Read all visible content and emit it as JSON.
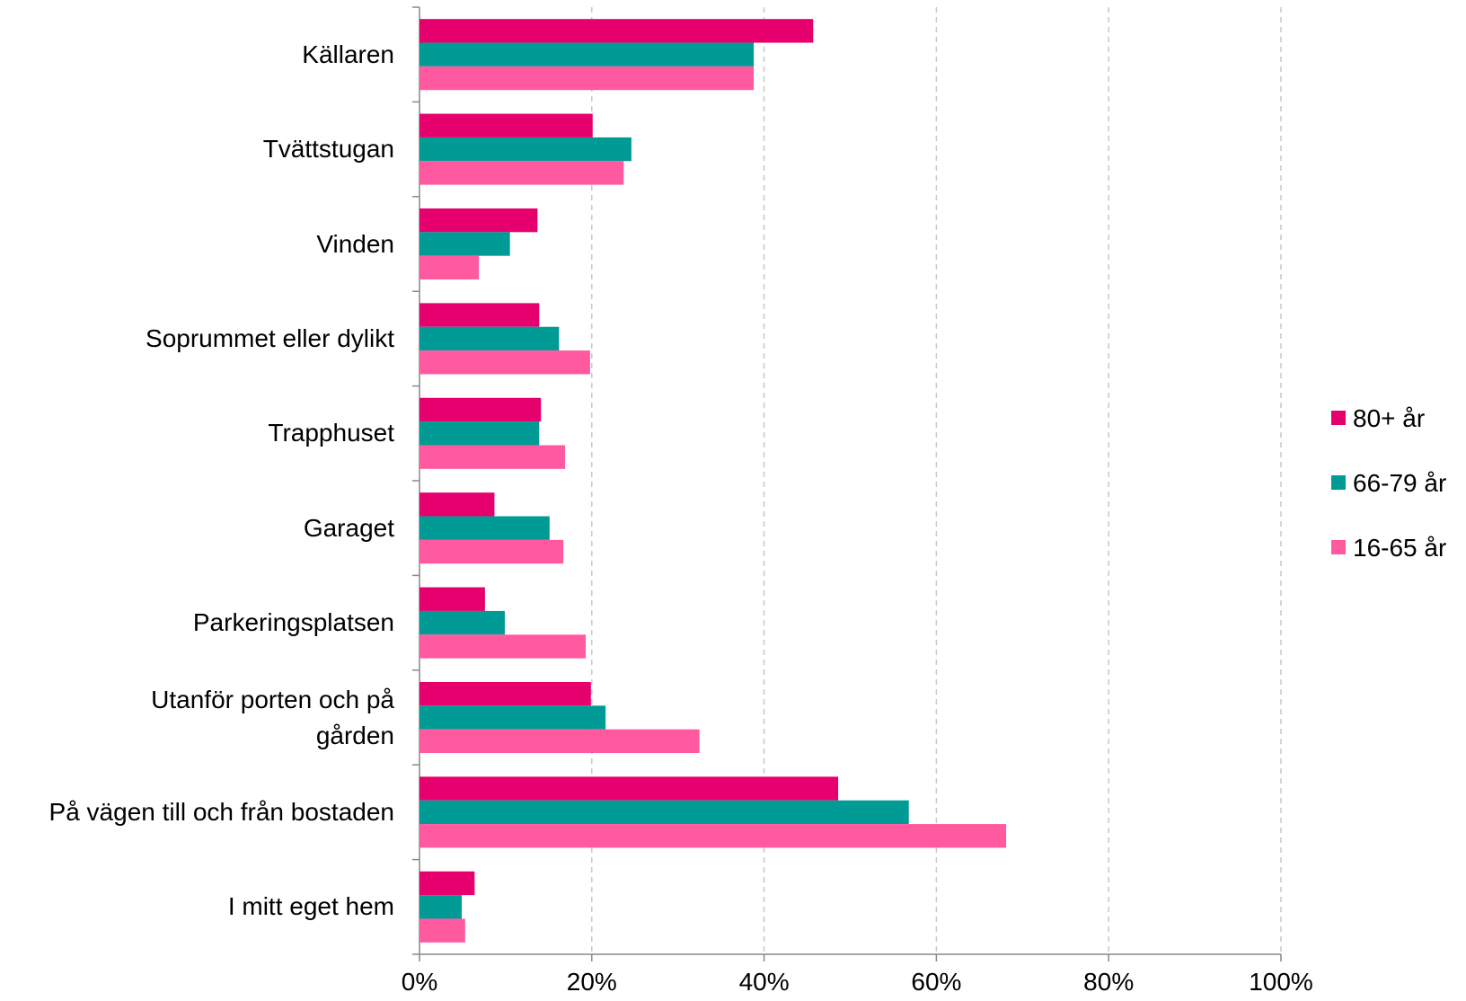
{
  "chart_data": {
    "type": "bar",
    "orientation": "horizontal",
    "categories": [
      "Källaren",
      "Tvättstugan",
      "Vinden",
      "Soprummet eller dylikt",
      "Trapphuset",
      "Garaget",
      "Parkeringsplatsen",
      "Utanför porten och på gården",
      "På vägen till och från bostaden",
      "I mitt eget hem"
    ],
    "series": [
      {
        "name": "80+ år",
        "color": "#e6006e",
        "values": [
          45.7,
          20.1,
          13.7,
          13.9,
          14.1,
          8.7,
          7.6,
          19.9,
          48.6,
          6.4
        ]
      },
      {
        "name": "66-79 år",
        "color": "#009b94",
        "values": [
          38.8,
          24.6,
          10.5,
          16.2,
          13.9,
          15.1,
          9.9,
          21.6,
          56.8,
          4.9
        ]
      },
      {
        "name": "16-65 år",
        "color": "#ff5aa0",
        "values": [
          38.8,
          23.7,
          6.9,
          19.8,
          16.9,
          16.7,
          19.3,
          32.5,
          68.1,
          5.3
        ]
      }
    ],
    "xlim": [
      0,
      100
    ],
    "xticks": [
      {
        "value": 0,
        "label": "0%"
      },
      {
        "value": 20,
        "label": "20%"
      },
      {
        "value": 40,
        "label": "40%"
      },
      {
        "value": 60,
        "label": "60%"
      },
      {
        "value": 80,
        "label": "80%"
      },
      {
        "value": 100,
        "label": "100%"
      }
    ],
    "grid": true,
    "legend": "right"
  }
}
